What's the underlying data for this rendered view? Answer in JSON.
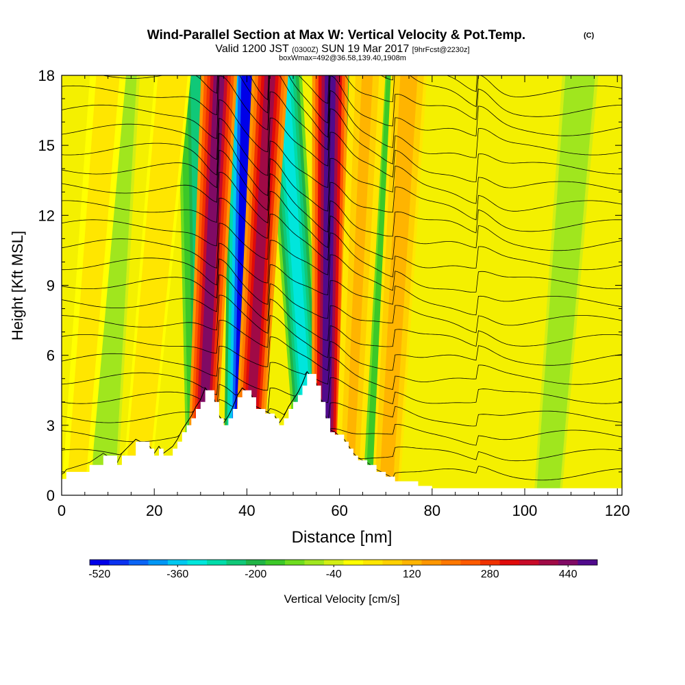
{
  "header": {
    "title": "Wind-Parallel Section at Max W: Vertical Velocity & Pot.Temp.",
    "copyright_mark": "(C)",
    "subtitle_main": "Valid 1200 JST",
    "subtitle_utc": "(0300Z)",
    "subtitle_date": "SUN 19 Mar 2017",
    "subtitle_fcst": "[9hrFcst@2230z]",
    "subtitle3": "boxWmax=492@36.58,139.40,1908m"
  },
  "chart_data": {
    "type": "heatmap",
    "title": "Wind-Parallel Section at Max W: Vertical Velocity & Pot.Temp.",
    "xlabel": "Distance [nm]",
    "ylabel": "Height [Kft MSL]",
    "xlim": [
      0,
      121
    ],
    "ylim": [
      0,
      18
    ],
    "x_ticks": [
      0,
      20,
      40,
      60,
      80,
      100,
      120
    ],
    "y_ticks": [
      0,
      3,
      6,
      9,
      12,
      15,
      18
    ],
    "grid": false,
    "shaded_field": "Vertical Velocity [cm/s]",
    "contour_field": "Potential temperature",
    "updraft_bands": [
      {
        "x_base": 30,
        "x_top": 34,
        "w": 440
      },
      {
        "x_base": 40,
        "x_top": 45,
        "w": 400
      },
      {
        "x_base": 57,
        "x_top": 58,
        "w": 492
      },
      {
        "x_base": 62,
        "x_top": 66,
        "w": 120
      },
      {
        "x_base": 70,
        "x_top": 75,
        "w": 150
      },
      {
        "x_base": 3,
        "x_top": 10,
        "w": 60
      },
      {
        "x_base": 16,
        "x_top": 24,
        "w": 80
      }
    ],
    "downdraft_bands": [
      {
        "x_base": 38,
        "x_top": 40,
        "w": -500
      },
      {
        "x_base": 54,
        "x_top": 48,
        "w": -300
      },
      {
        "x_base": 30,
        "x_top": 29,
        "w": -220
      },
      {
        "x_base": 60,
        "x_top": 60,
        "w": -220
      },
      {
        "x_base": 67,
        "x_top": 72,
        "w": -150
      },
      {
        "x_base": 9,
        "x_top": 13,
        "w": -80
      },
      {
        "x_base": 105,
        "x_top": 112,
        "w": -80
      }
    ],
    "terrain_kft": [
      [
        0,
        0.7
      ],
      [
        1,
        1.0
      ],
      [
        6,
        1.3
      ],
      [
        9,
        1.7
      ],
      [
        12,
        1.3
      ],
      [
        13,
        1.7
      ],
      [
        16,
        2.3
      ],
      [
        19,
        2.0
      ],
      [
        20,
        1.7
      ],
      [
        21,
        2.0
      ],
      [
        22,
        1.7
      ],
      [
        24,
        2.0
      ],
      [
        25,
        2.3
      ],
      [
        26,
        2.7
      ],
      [
        27,
        3.0
      ],
      [
        28,
        3.3
      ],
      [
        29,
        3.7
      ],
      [
        30,
        4.0
      ],
      [
        31,
        4.5
      ],
      [
        33,
        4.0
      ],
      [
        34,
        3.3
      ],
      [
        35,
        3.0
      ],
      [
        36,
        3.3
      ],
      [
        37,
        3.7
      ],
      [
        38,
        4.2
      ],
      [
        39,
        4.5
      ],
      [
        41,
        4.2
      ],
      [
        42,
        3.7
      ],
      [
        44,
        3.5
      ],
      [
        46,
        3.3
      ],
      [
        47,
        3.0
      ],
      [
        48,
        3.3
      ],
      [
        49,
        3.7
      ],
      [
        50,
        4.0
      ],
      [
        51,
        4.3
      ],
      [
        52,
        4.7
      ],
      [
        53,
        5.2
      ],
      [
        55,
        4.7
      ],
      [
        56,
        4.0
      ],
      [
        57,
        3.3
      ],
      [
        58,
        2.7
      ],
      [
        59,
        2.6
      ],
      [
        61,
        2.3
      ],
      [
        62,
        2.0
      ],
      [
        63,
        1.7
      ],
      [
        64,
        1.5
      ],
      [
        66,
        1.3
      ],
      [
        68,
        1.0
      ],
      [
        70,
        0.8
      ],
      [
        72,
        0.6
      ],
      [
        77,
        0.4
      ],
      [
        80,
        0.3
      ],
      [
        120,
        0.3
      ],
      [
        121,
        0.3
      ]
    ]
  },
  "colorbar": {
    "label": "Vertical Velocity [cm/s]",
    "tick_labels": [
      "-520",
      "-360",
      "-200",
      "-40",
      "120",
      "280",
      "440"
    ],
    "colors": [
      "#0000e8",
      "#0a32f0",
      "#0a64f5",
      "#0096f5",
      "#00c8f0",
      "#00e6dc",
      "#00dcaa",
      "#10c878",
      "#20b446",
      "#3cc828",
      "#6edc1e",
      "#a0e61e",
      "#d2ee14",
      "#ffff00",
      "#ffe600",
      "#ffd000",
      "#ffb400",
      "#ff9600",
      "#ff7800",
      "#ff5a00",
      "#f03200",
      "#e00a0a",
      "#c80a28",
      "#a00a46",
      "#800a64",
      "#500a8c"
    ]
  }
}
